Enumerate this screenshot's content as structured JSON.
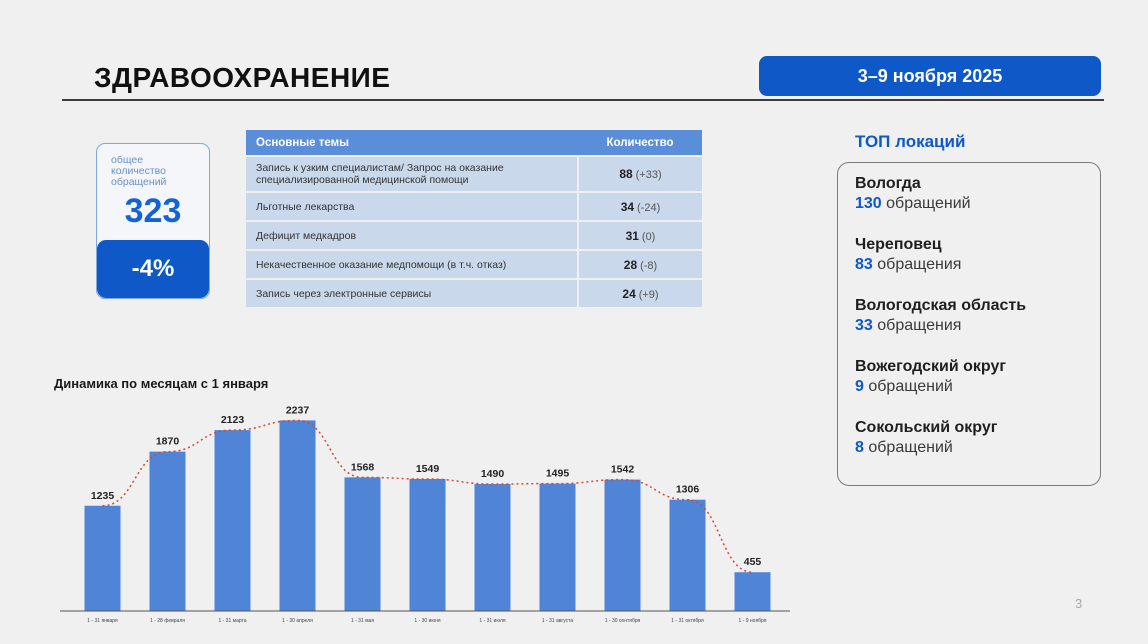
{
  "header": {
    "title": "ЗДРАВООХРАНЕНИЕ",
    "date_range": "3–9 ноября 2025"
  },
  "kpi": {
    "label": "общее количество обращений",
    "value": "323",
    "change": "-4%"
  },
  "topics": {
    "col_topic": "Основные темы",
    "col_count": "Количество",
    "rows": [
      {
        "topic": "Запись к узким специалистам/ Запрос на оказание специализированной медицинской помощи",
        "value": "88",
        "delta": "(+33)"
      },
      {
        "topic": "Льготные лекарства",
        "value": "34",
        "delta": "(-24)"
      },
      {
        "topic": "Дефицит медкадров",
        "value": "31",
        "delta": "(0)"
      },
      {
        "topic": "Некачественное оказание медпомощи (в т.ч. отказ)",
        "value": "28",
        "delta": "(-8)"
      },
      {
        "topic": "Запись через электронные сервисы",
        "value": "24",
        "delta": "(+9)"
      }
    ]
  },
  "locations": {
    "title": "ТОП локаций",
    "items": [
      {
        "name": "Вологда",
        "count": "130",
        "unit": "обращений"
      },
      {
        "name": "Череповец",
        "count": "83",
        "unit": "обращения"
      },
      {
        "name": "Вологодская область",
        "count": "33",
        "unit": "обращения"
      },
      {
        "name": "Вожегодский округ",
        "count": "9",
        "unit": "обращений"
      },
      {
        "name": "Сокольский округ",
        "count": "8",
        "unit": "обращений"
      }
    ]
  },
  "colors": {
    "accent": "#0e59c7",
    "bar": "#4f84d6",
    "trend_line": "#d9472f"
  },
  "chart_data": {
    "type": "bar",
    "title": "Динамика по месяцам с 1 января",
    "categories": [
      "1 - 31 января",
      "1 - 28 февраля",
      "1 - 31 марта",
      "1 - 30 апреля",
      "1 - 31 мая",
      "1 - 30 июня",
      "1 - 31 июля",
      "1 - 31 августа",
      "1 - 30 сентября",
      "1 - 31 октября",
      "1 - 9 ноября"
    ],
    "values": [
      1235,
      1870,
      2123,
      2237,
      1568,
      1549,
      1490,
      1495,
      1542,
      1306,
      455
    ],
    "trend_line": "dotted",
    "ylim": [
      0,
      2300
    ]
  },
  "page_number": "3"
}
